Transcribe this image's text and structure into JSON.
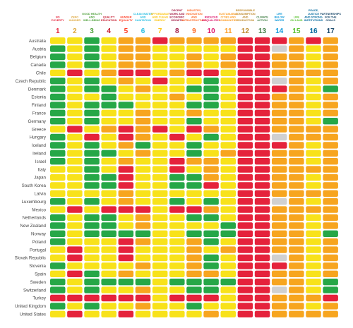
{
  "chart_data": {
    "type": "heatmap",
    "goals": [
      {
        "num": "1",
        "label": [
          "NO",
          "POVERTY"
        ],
        "color": "#e5243b"
      },
      {
        "num": "2",
        "label": [
          "ZERO",
          "HUNGER"
        ],
        "color": "#dda63a"
      },
      {
        "num": "3",
        "label": [
          "GOOD HEALTH",
          "AND",
          "WELL-BEING"
        ],
        "color": "#4c9f38"
      },
      {
        "num": "4",
        "label": [
          "QUALITY",
          "EDUCATION"
        ],
        "color": "#c5192d"
      },
      {
        "num": "5",
        "label": [
          "GENDER",
          "EQUALITY"
        ],
        "color": "#ff3a21"
      },
      {
        "num": "6",
        "label": [
          "CLEAN WATER",
          "AND",
          "SANITATION"
        ],
        "color": "#26bde2"
      },
      {
        "num": "7",
        "label": [
          "AFFORDABLE",
          "AND CLEAN",
          "ENERGY"
        ],
        "color": "#fcc30b"
      },
      {
        "num": "8",
        "label": [
          "DECENT",
          "WORK AND",
          "ECONOMIC",
          "GROWTH"
        ],
        "color": "#a21942"
      },
      {
        "num": "9",
        "label": [
          "INDUSTRY,",
          "INNOVATION",
          "AND",
          "INFRASTRUCTURE"
        ],
        "color": "#fd6925"
      },
      {
        "num": "10",
        "label": [
          "REDUCED",
          "INEQUALITIES"
        ],
        "color": "#dd1367"
      },
      {
        "num": "11",
        "label": [
          "SUSTAINABLE",
          "CITIES AND",
          "COMMUNITIES"
        ],
        "color": "#fd9d24"
      },
      {
        "num": "12",
        "label": [
          "RESPONSIBLE",
          "CONSUMPTION",
          "AND",
          "PRODUCTION"
        ],
        "color": "#bf8b2e"
      },
      {
        "num": "13",
        "label": [
          "CLIMATE",
          "ACTION"
        ],
        "color": "#3f7e44"
      },
      {
        "num": "14",
        "label": [
          "LIFE",
          "BELOW",
          "WATER"
        ],
        "color": "#0a97d9"
      },
      {
        "num": "15",
        "label": [
          "LIFE",
          "ON LAND"
        ],
        "color": "#56c02b"
      },
      {
        "num": "16",
        "label": [
          "PEACE,",
          "JUSTICE",
          "AND STRONG",
          "INSTITUTIONS"
        ],
        "color": "#00689d"
      },
      {
        "num": "17",
        "label": [
          "PARTNERSHIPS",
          "FOR THE",
          "GOALS"
        ],
        "color": "#19486a"
      }
    ],
    "countries": [
      "Australia",
      "Austria",
      "Belgium",
      "Canada",
      "Chile",
      "Czech Republic",
      "Denmark",
      "Estonia",
      "Finland",
      "France",
      "Germany",
      "Greece",
      "Hungary",
      "Iceland",
      "Ireland",
      "Israel",
      "Italy",
      "Japan",
      "South Korea",
      "Latvia",
      "Luxembourg",
      "Mexico",
      "Netherlands",
      "New Zealand",
      "Norway",
      "Poland",
      "Portugal",
      "Slovak Republic",
      "Slovenia",
      "Spain",
      "Sweden",
      "Switzerland",
      "Turkey",
      "United Kingdom",
      "United States"
    ],
    "status_codes": {
      "G": "green",
      "Y": "yellow",
      "O": "orange",
      "R": "red",
      "N": "grey"
    },
    "status_colors": {
      "G": "#26a747",
      "Y": "#f8e21a",
      "O": "#f7a51f",
      "R": "#e5223b",
      "N": "#d0d0d0"
    },
    "rows": [
      "YYGYOOROOOORRRORO",
      "GYGYOOYYYYYRRNOYO",
      "GYGYOOYYOYORROOYO",
      "GYGYOOYYOYORROOYO",
      "YRYORRYORRYRROOOO",
      "GYGYOYRYYGYRRNOYO",
      "GYGGYOYYGGYRRROYG",
      "GYYGYYYOYGYRROOYO",
      "GYGGGYYYGGYRROOYO",
      "GYGYYOYYOYYRROOYO",
      "GYGYYOYYGYYRROOYG",
      "YRYORORYROYRROOOO",
      "GYRYROYRYGYRRNOOO",
      "GYGYOGYYGYYRRROYO",
      "GYGGYOYYGYORROOYO",
      "GYGYOYYROOYRROOYO",
      "YYGYRYYRYOYRROOOO",
      "YYGGRYYGGOYRROOYO",
      "YYGGRYYGGRYRROOYO",
      "YYYYOYYYYYYRROOOO",
      "GYGYOYYGYGYRRNOYO",
      "YRYRRRYRROYRROOOO",
      "GYGGYOYYGGYRROOYO",
      "GYGGYOYYYYGRROOYO",
      "GYGGGGYYGGGRROOYG",
      "GYYYROYYOGYRROOYO",
      "YRYYRYYYOYORROOYO",
      "YRYYRYYYOGYRRNOYO",
      "GYYYYOYYOGYRRROYO",
      "YRGYOYYYOOYRROOYO",
      "GYGGGGYGGGGRROOYG",
      "GYGYYOYYGGYRRNOYG",
      "RRRRRRYRRRYRROOOR",
      "GYGYYOYYGYYRROOYO",
      "YRYYRYYYYOYRROOOO"
    ]
  }
}
